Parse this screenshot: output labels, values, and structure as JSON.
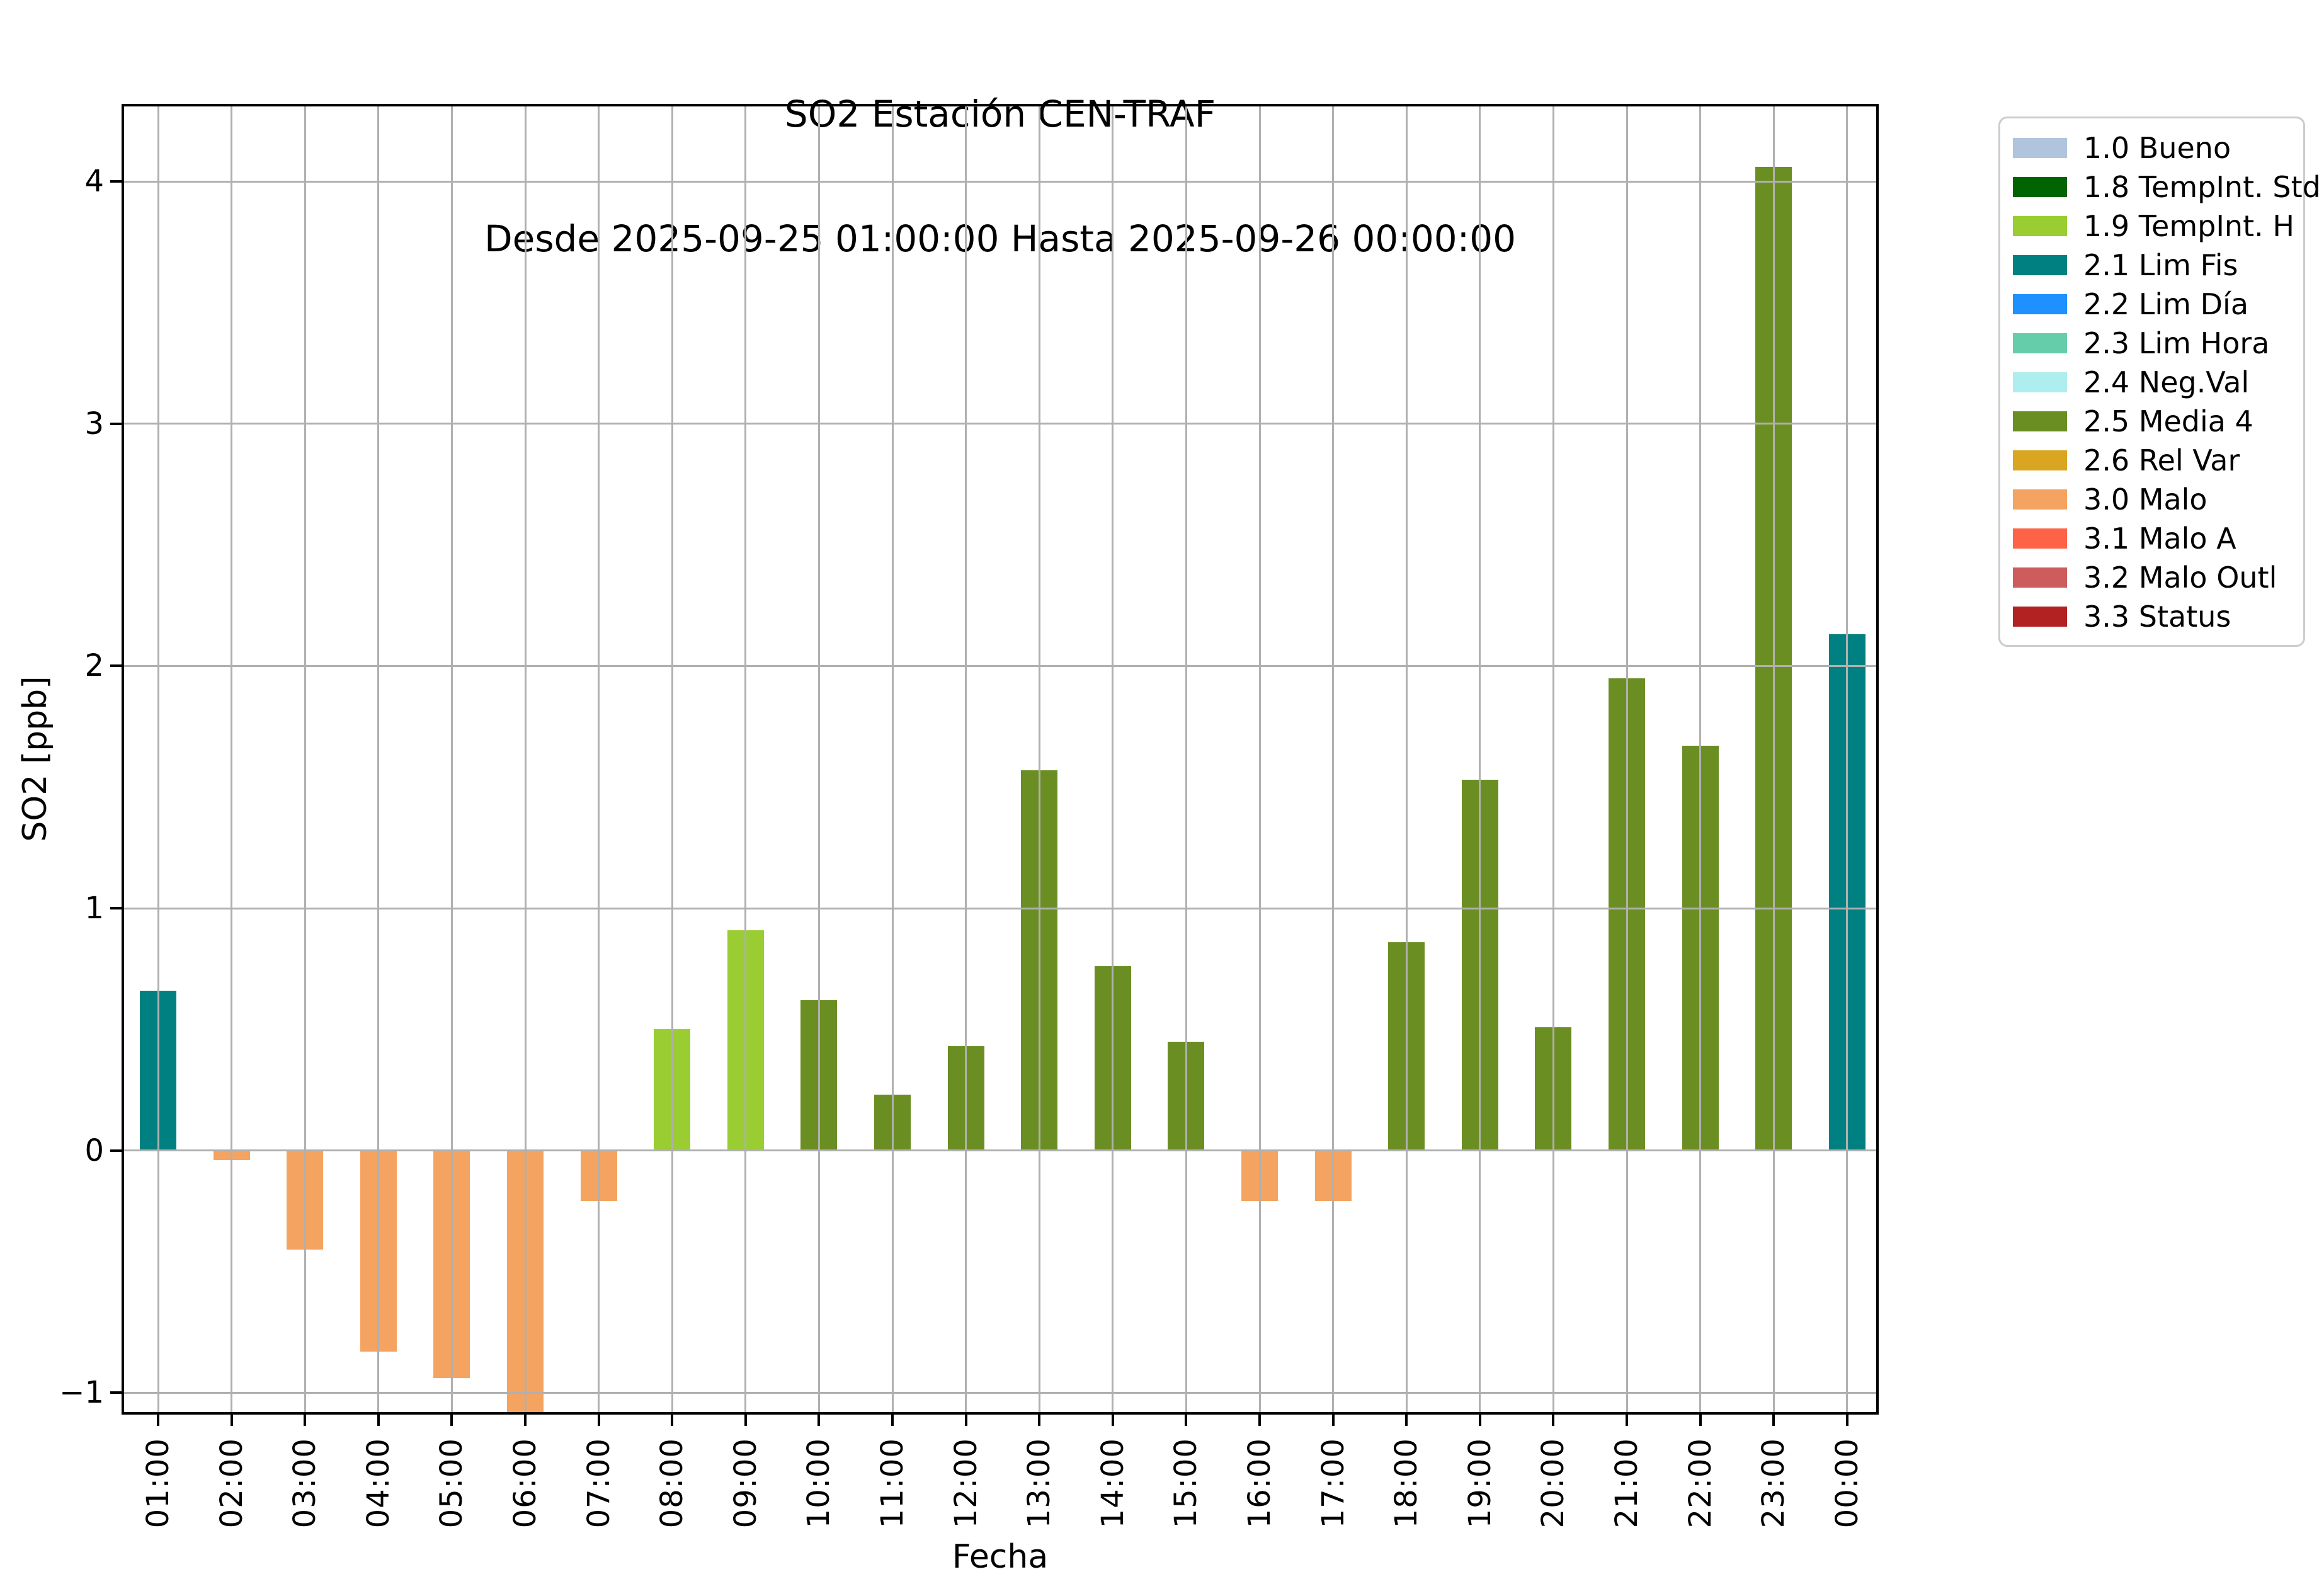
{
  "chart_data": {
    "type": "bar",
    "title": "SO2 Estación CEN-TRAF",
    "subtitle": "Desde 2025-09-25 01:00:00 Hasta 2025-09-26 00:00:00",
    "xlabel": "Fecha",
    "ylabel": "SO2 [ppb]",
    "categories": [
      "01:00",
      "02:00",
      "03:00",
      "04:00",
      "05:00",
      "06:00",
      "07:00",
      "08:00",
      "09:00",
      "10:00",
      "11:00",
      "12:00",
      "13:00",
      "14:00",
      "15:00",
      "16:00",
      "17:00",
      "18:00",
      "19:00",
      "20:00",
      "21:00",
      "22:00",
      "23:00",
      "00:00"
    ],
    "values": [
      0.66,
      -0.04,
      -0.41,
      -0.83,
      -0.94,
      -1.09,
      -0.21,
      0.5,
      0.91,
      0.62,
      0.23,
      0.43,
      1.57,
      0.76,
      0.45,
      -0.21,
      -0.21,
      0.86,
      1.53,
      0.51,
      1.95,
      1.67,
      4.06,
      2.13
    ],
    "bar_classes": [
      "2.1 Lim Fis",
      "3.0 Malo",
      "3.0 Malo",
      "3.0 Malo",
      "3.0 Malo",
      "3.0 Malo",
      "3.0 Malo",
      "1.9 TempInt. H",
      "1.9 TempInt. H",
      "2.5 Media 4",
      "2.5 Media 4",
      "2.5 Media 4",
      "2.5 Media 4",
      "2.5 Media 4",
      "2.5 Media 4",
      "3.0 Malo",
      "3.0 Malo",
      "2.5 Media 4",
      "2.5 Media 4",
      "2.5 Media 4",
      "2.5 Media 4",
      "2.5 Media 4",
      "2.5 Media 4",
      "2.1 Lim Fis"
    ],
    "yticks": [
      -1,
      0,
      1,
      2,
      3,
      4
    ],
    "ytick_labels": [
      "−1",
      "0",
      "1",
      "2",
      "3",
      "4"
    ],
    "ylim": [
      -1.09,
      4.32
    ],
    "grid": true,
    "legend_position": "outside-upper-right",
    "legend_entries": [
      {
        "label": "1.0 Bueno",
        "color": "#b0c4de"
      },
      {
        "label": "1.8 TempInt. Std",
        "color": "#006400"
      },
      {
        "label": "1.9 TempInt. H",
        "color": "#9acd32"
      },
      {
        "label": "2.1 Lim Fis",
        "color": "#008080"
      },
      {
        "label": "2.2 Lim Día",
        "color": "#1e90ff"
      },
      {
        "label": "2.3 Lim Hora",
        "color": "#66cdaa"
      },
      {
        "label": "2.4 Neg.Val",
        "color": "#afeeee"
      },
      {
        "label": "2.5 Media 4",
        "color": "#6b8e23"
      },
      {
        "label": "2.6 Rel Var",
        "color": "#daa520"
      },
      {
        "label": "3.0 Malo",
        "color": "#f4a460"
      },
      {
        "label": "3.1 Malo A",
        "color": "#ff6347"
      },
      {
        "label": "3.2 Malo Outl",
        "color": "#cd5c5c"
      },
      {
        "label": "3.3 Status",
        "color": "#b22222"
      }
    ],
    "colors": {
      "grid": "#b0b0b0",
      "spine": "#000000",
      "text": "#000000",
      "background": "#ffffff"
    }
  }
}
